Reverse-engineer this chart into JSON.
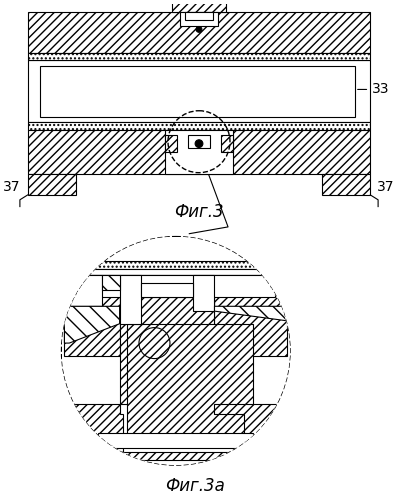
{
  "title_top": "Фиг.3",
  "title_bottom": "Фиг.3а",
  "label_33": "33",
  "label_37_left": "37",
  "label_37_right": "37",
  "bg_color": "#ffffff",
  "line_color": "#000000",
  "fig_width": 3.98,
  "fig_height": 5.0
}
